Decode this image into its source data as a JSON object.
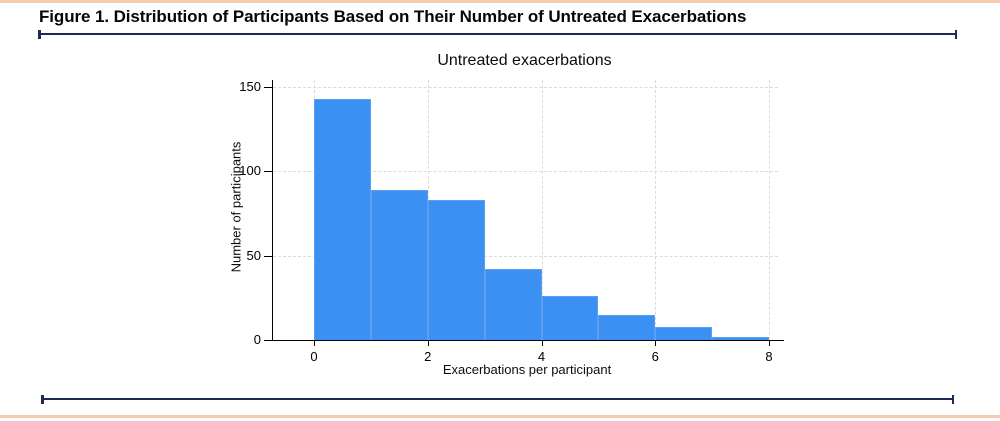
{
  "header": {
    "title": "Figure 1. Distribution of Participants Based on Their Number of Untreated Exacerbations"
  },
  "colors": {
    "accent_border": "#F6CBAE",
    "rule": "#1C2A56",
    "bar_fill": "#3B90F4",
    "bar_edge": "#5C9FF0",
    "gridline": "#DBDBDB",
    "axis": "#000000"
  },
  "chart_data": {
    "type": "bar",
    "subtype": "histogram",
    "title": "Untreated exacerbations",
    "xlabel": "Exacerbations per participant",
    "ylabel": "Number of participants",
    "bin_edges": [
      0,
      1,
      2,
      3,
      4,
      5,
      6,
      7,
      8
    ],
    "values": [
      143,
      89,
      83,
      42,
      26,
      15,
      8,
      2
    ],
    "x_ticks": [
      0,
      2,
      4,
      6,
      8
    ],
    "y_ticks": [
      0,
      50,
      100,
      150
    ],
    "xlim": [
      0,
      8
    ],
    "ylim": [
      0,
      154
    ],
    "grid": "dashed",
    "legend": "none"
  }
}
